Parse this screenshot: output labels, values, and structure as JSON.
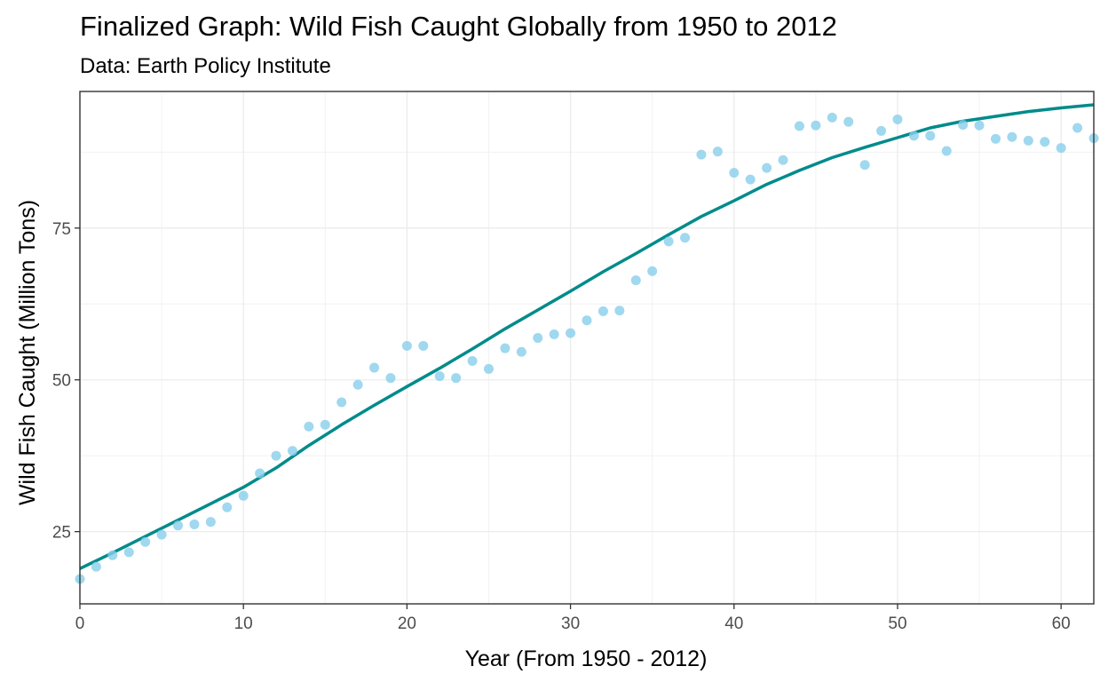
{
  "chart_data": {
    "type": "scatter",
    "title": "Finalized Graph: Wild Fish Caught Globally from 1950 to 2012",
    "subtitle": "Data: Earth Policy Institute",
    "xlabel": "Year (From 1950 - 2012)",
    "ylabel": "Wild Fish Caught (Million Tons)",
    "xlim": [
      0,
      62
    ],
    "ylim": [
      13.1,
      97.5
    ],
    "x_ticks": [
      0,
      10,
      20,
      30,
      40,
      50,
      60
    ],
    "y_ticks": [
      25,
      50,
      75
    ],
    "grid": true,
    "points_color": "#87CEEB",
    "trend_color": "#008B8B",
    "series": [
      {
        "kind": "points",
        "x": [
          0,
          1,
          2,
          3,
          4,
          5,
          6,
          7,
          8,
          9,
          10,
          11,
          12,
          13,
          14,
          15,
          16,
          17,
          18,
          19,
          20,
          21,
          22,
          23,
          24,
          25,
          26,
          27,
          28,
          29,
          30,
          31,
          32,
          33,
          34,
          35,
          36,
          37,
          38,
          39,
          40,
          41,
          42,
          43,
          44,
          45,
          46,
          47,
          48,
          49,
          50,
          51,
          52,
          53,
          54,
          55,
          56,
          57,
          58,
          59,
          60,
          61,
          62
        ],
        "y": [
          17.2,
          19.2,
          21.1,
          21.6,
          23.3,
          24.5,
          26.0,
          26.2,
          26.6,
          29.0,
          30.9,
          34.6,
          37.5,
          38.3,
          42.3,
          42.6,
          46.3,
          49.2,
          52.0,
          50.3,
          55.6,
          55.6,
          50.6,
          50.3,
          53.1,
          51.8,
          55.2,
          54.6,
          56.9,
          57.5,
          57.7,
          59.8,
          61.3,
          61.4,
          66.4,
          67.9,
          72.8,
          73.4,
          87.1,
          87.6,
          84.1,
          83.0,
          84.9,
          86.2,
          91.8,
          91.9,
          93.2,
          92.5,
          85.4,
          91.0,
          92.9,
          90.2,
          90.2,
          87.7,
          92.0,
          91.9,
          89.7,
          90.0,
          89.4,
          89.2,
          88.2,
          91.5,
          89.8
        ]
      },
      {
        "kind": "smooth",
        "x": [
          0,
          2,
          4,
          6,
          8,
          10,
          12,
          14,
          16,
          18,
          20,
          22,
          24,
          26,
          28,
          30,
          32,
          34,
          36,
          38,
          40,
          42,
          44,
          46,
          48,
          50,
          52,
          54,
          56,
          58,
          60,
          62
        ],
        "y": [
          18.9,
          21.5,
          24.2,
          26.9,
          29.6,
          32.3,
          35.5,
          39.2,
          42.6,
          45.8,
          48.9,
          51.9,
          55.1,
          58.4,
          61.5,
          64.6,
          67.8,
          70.8,
          73.9,
          76.9,
          79.5,
          82.2,
          84.5,
          86.6,
          88.3,
          89.9,
          91.5,
          92.6,
          93.4,
          94.2,
          94.8,
          95.3
        ]
      }
    ]
  }
}
